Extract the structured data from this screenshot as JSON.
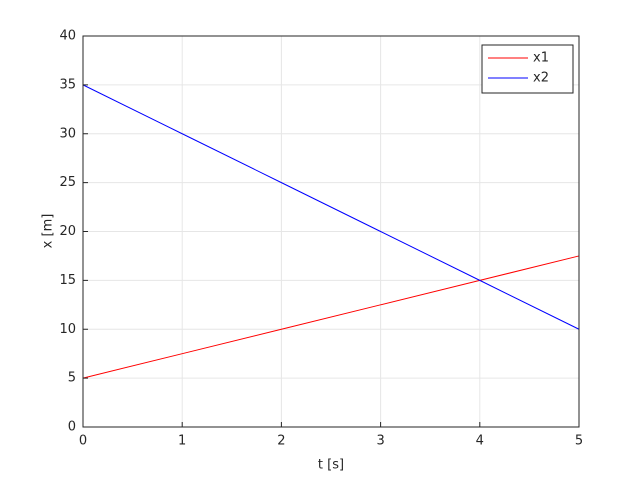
{
  "chart_data": {
    "type": "line",
    "x": [
      0,
      1,
      2,
      3,
      4,
      5
    ],
    "series": [
      {
        "name": "x1",
        "color": "#ff0000",
        "values": [
          5,
          7.5,
          10,
          12.5,
          15,
          17.5
        ]
      },
      {
        "name": "x2",
        "color": "#0000ff",
        "values": [
          35,
          30,
          25,
          20,
          15,
          10
        ]
      }
    ],
    "xlabel": "t [s]",
    "ylabel": "x [m]",
    "xlim": [
      0,
      5
    ],
    "xticks": [
      0,
      1,
      2,
      3,
      4,
      5
    ],
    "ylim": [
      0,
      40
    ],
    "yticks": [
      0,
      5,
      10,
      15,
      20,
      25,
      30,
      35,
      40
    ],
    "grid": true,
    "legend": "northeast"
  }
}
